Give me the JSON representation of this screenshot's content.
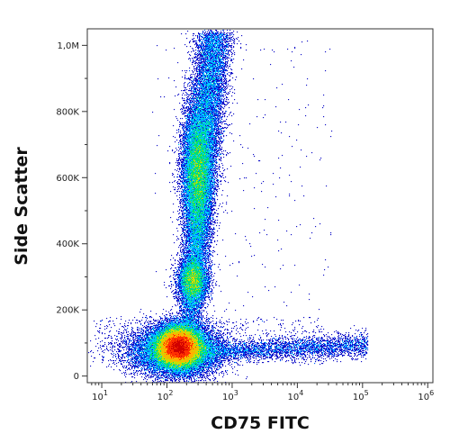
{
  "chart_data": {
    "type": "scatter",
    "title": "",
    "xlabel": "CD75 FITC",
    "ylabel": "Side Scatter",
    "x_scale": "log",
    "y_scale": "linear",
    "xlim": [
      6,
      1200000
    ],
    "ylim": [
      -20000,
      1050000
    ],
    "grid": false,
    "legend": "none",
    "x_ticks": [
      {
        "value": 10,
        "base": "10",
        "exp": "1"
      },
      {
        "value": 100,
        "base": "10",
        "exp": "2"
      },
      {
        "value": 1000,
        "base": "10",
        "exp": "3"
      },
      {
        "value": 10000,
        "base": "10",
        "exp": "4"
      },
      {
        "value": 100000,
        "base": "10",
        "exp": "5"
      },
      {
        "value": 1000000,
        "base": "10",
        "exp": "6"
      }
    ],
    "y_ticks": [
      {
        "value": 0,
        "label": "0"
      },
      {
        "value": 200000,
        "label": "200K"
      },
      {
        "value": 400000,
        "label": "400K"
      },
      {
        "value": 600000,
        "label": "600K"
      },
      {
        "value": 800000,
        "label": "800K"
      },
      {
        "value": 1000000,
        "label": "1,0M"
      }
    ],
    "density_colors": [
      "#1010c8",
      "#0060ff",
      "#00c8ff",
      "#00e070",
      "#c8e000",
      "#ffb000",
      "#ff3000",
      "#d00000"
    ],
    "populations": [
      {
        "name": "",
        "center": [
          150,
          90000
        ],
        "count": 55000,
        "density_peak": 1.0
      },
      {
        "name": "",
        "center": [
          220,
          620000
        ],
        "count": 16000,
        "density_peak": 0.65
      },
      {
        "name": "",
        "center": [
          190,
          290000
        ],
        "count": 6000,
        "density_peak": 0.55
      },
      {
        "name": "",
        "center": [
          3000,
          70000
        ],
        "count": 3500,
        "density_peak": 0.3
      }
    ]
  }
}
